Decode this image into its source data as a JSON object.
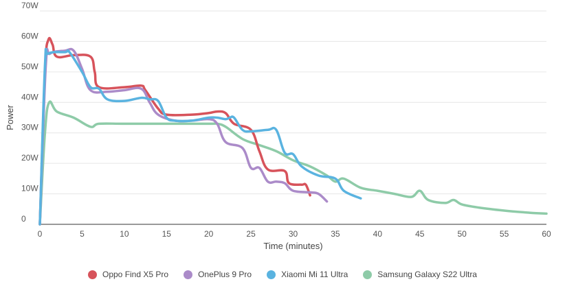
{
  "chart_data": {
    "type": "line",
    "title": "",
    "xlabel": "Time (minutes)",
    "ylabel": "Power",
    "xlim": [
      0,
      60
    ],
    "ylim": [
      0,
      70
    ],
    "x_ticks": [
      0,
      5,
      10,
      15,
      20,
      25,
      30,
      35,
      40,
      45,
      50,
      55,
      60
    ],
    "y_ticks": [
      {
        "value": 0,
        "label": "0"
      },
      {
        "value": 10,
        "label": "10W"
      },
      {
        "value": 20,
        "label": "20W"
      },
      {
        "value": 30,
        "label": "30W"
      },
      {
        "value": 40,
        "label": "40W"
      },
      {
        "value": 50,
        "label": "50W"
      },
      {
        "value": 60,
        "label": "60W"
      },
      {
        "value": 70,
        "label": "70W"
      }
    ],
    "grid": "horizontal",
    "legend_position": "bottom-center",
    "series": [
      {
        "name": "Samsung Galaxy S22 Ultra",
        "color": "#8ecba8",
        "points": [
          [
            0,
            0
          ],
          [
            0.6,
            30
          ],
          [
            1.1,
            40
          ],
          [
            2,
            37
          ],
          [
            4,
            35
          ],
          [
            6,
            32
          ],
          [
            7,
            33
          ],
          [
            10,
            33
          ],
          [
            15,
            33
          ],
          [
            20,
            33
          ],
          [
            21,
            33
          ],
          [
            22,
            32
          ],
          [
            24,
            28
          ],
          [
            26,
            26
          ],
          [
            28,
            24
          ],
          [
            30,
            21
          ],
          [
            32,
            19
          ],
          [
            34,
            16
          ],
          [
            35,
            14
          ],
          [
            36,
            15
          ],
          [
            38,
            12
          ],
          [
            40,
            11
          ],
          [
            42,
            10
          ],
          [
            44,
            9
          ],
          [
            45,
            11
          ],
          [
            46,
            8
          ],
          [
            48,
            7
          ],
          [
            49,
            8
          ],
          [
            50,
            6.5
          ],
          [
            52,
            5.5
          ],
          [
            55,
            4.5
          ],
          [
            58,
            3.8
          ],
          [
            60,
            3.5
          ]
        ]
      },
      {
        "name": "Oppo Find X5 Pro",
        "color": "#d7535b",
        "points": [
          [
            0,
            0
          ],
          [
            0.6,
            50
          ],
          [
            1,
            60.5
          ],
          [
            1.5,
            59
          ],
          [
            2,
            55
          ],
          [
            4,
            55.5
          ],
          [
            6,
            55
          ],
          [
            6.5,
            50
          ],
          [
            7,
            45
          ],
          [
            10,
            45
          ],
          [
            12,
            45.5
          ],
          [
            12.5,
            44
          ],
          [
            14,
            38
          ],
          [
            15,
            36
          ],
          [
            18,
            36
          ],
          [
            20,
            36.5
          ],
          [
            21,
            37
          ],
          [
            22,
            36.5
          ],
          [
            23,
            33
          ],
          [
            25,
            31
          ],
          [
            26,
            24
          ],
          [
            27,
            18
          ],
          [
            29,
            17.5
          ],
          [
            29.5,
            13.5
          ],
          [
            31,
            13
          ],
          [
            31.5,
            13
          ],
          [
            32,
            9.5
          ]
        ]
      },
      {
        "name": "OnePlus 9 Pro",
        "color": "#ab8bc9",
        "points": [
          [
            0,
            0
          ],
          [
            0.7,
            52
          ],
          [
            1.2,
            56
          ],
          [
            3,
            57
          ],
          [
            4,
            57
          ],
          [
            5,
            51
          ],
          [
            6,
            44
          ],
          [
            8,
            43.5
          ],
          [
            10,
            44
          ],
          [
            12,
            44.5
          ],
          [
            13,
            40
          ],
          [
            14,
            36
          ],
          [
            16,
            34
          ],
          [
            18,
            34
          ],
          [
            20,
            34.5
          ],
          [
            21,
            33
          ],
          [
            22,
            27
          ],
          [
            24,
            25
          ],
          [
            25,
            18.5
          ],
          [
            26,
            18.5
          ],
          [
            27,
            14
          ],
          [
            28,
            14
          ],
          [
            29,
            13.5
          ],
          [
            30,
            11
          ],
          [
            32,
            10.5
          ],
          [
            33,
            10
          ],
          [
            34,
            7.5
          ]
        ]
      },
      {
        "name": "Xiaomi Mi 11 Ultra",
        "color": "#5ab3e0",
        "points": [
          [
            0,
            0
          ],
          [
            0.6,
            52
          ],
          [
            1,
            56
          ],
          [
            3,
            56.5
          ],
          [
            3.5,
            56.5
          ],
          [
            5,
            50
          ],
          [
            6,
            45
          ],
          [
            7,
            44.5
          ],
          [
            8,
            41
          ],
          [
            10,
            40.5
          ],
          [
            12,
            41.5
          ],
          [
            13,
            41
          ],
          [
            14,
            40.5
          ],
          [
            15,
            35
          ],
          [
            16,
            34
          ],
          [
            18,
            34
          ],
          [
            20,
            35
          ],
          [
            21,
            35
          ],
          [
            22,
            34.5
          ],
          [
            22.5,
            35
          ],
          [
            23,
            35
          ],
          [
            24,
            31
          ],
          [
            25,
            30.5
          ],
          [
            27,
            31
          ],
          [
            28,
            31
          ],
          [
            29,
            23.5
          ],
          [
            30,
            23
          ],
          [
            31,
            19
          ],
          [
            33,
            16
          ],
          [
            35,
            15
          ],
          [
            36,
            11
          ],
          [
            38,
            8.5
          ]
        ]
      }
    ]
  },
  "legend": {
    "items": [
      {
        "label": "Oppo Find X5 Pro",
        "color": "#d7535b"
      },
      {
        "label": "OnePlus 9 Pro",
        "color": "#ab8bc9"
      },
      {
        "label": "Xiaomi Mi 11 Ultra",
        "color": "#5ab3e0"
      },
      {
        "label": "Samsung Galaxy S22 Ultra",
        "color": "#8ecba8"
      }
    ]
  }
}
